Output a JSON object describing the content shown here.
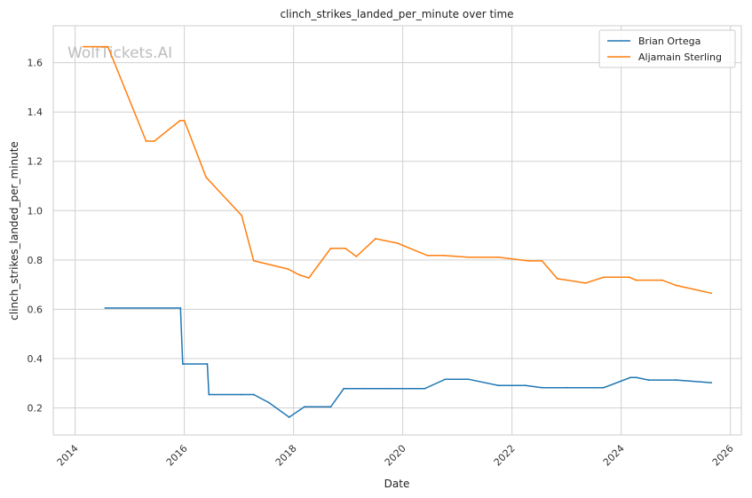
{
  "chart_data": {
    "type": "line",
    "title": "clinch_strikes_landed_per_minute over time",
    "xlabel": "Date",
    "ylabel": "clinch_strikes_landed_per_minute",
    "watermark": "WolfTickets.AI",
    "xlim": [
      2013.6,
      2026.2
    ],
    "ylim": [
      0.09,
      1.75
    ],
    "x_ticks": [
      2014,
      2016,
      2018,
      2020,
      2022,
      2024,
      2026
    ],
    "y_ticks": [
      0.2,
      0.4,
      0.6,
      0.8,
      1.0,
      1.2,
      1.4,
      1.6
    ],
    "y_tick_labels": [
      "0.2",
      "0.4",
      "0.6",
      "0.8",
      "1.0",
      "1.2",
      "1.4",
      "1.6"
    ],
    "grid": true,
    "legend_position": "top-right",
    "series": [
      {
        "name": "Brian Ortega",
        "color": "#1f77b4",
        "x": [
          2014.55,
          2015.93,
          2015.97,
          2016.42,
          2016.45,
          2017.05,
          2017.27,
          2017.55,
          2017.92,
          2018.2,
          2018.68,
          2018.92,
          2019.3,
          2019.7,
          2020.4,
          2020.78,
          2021.2,
          2021.75,
          2022.25,
          2022.55,
          2023.0,
          2023.68,
          2024.17,
          2024.28,
          2024.5,
          2025.0,
          2025.65
        ],
        "y": [
          0.605,
          0.605,
          0.378,
          0.378,
          0.254,
          0.254,
          0.254,
          0.221,
          0.162,
          0.204,
          0.204,
          0.278,
          0.278,
          0.278,
          0.278,
          0.316,
          0.316,
          0.291,
          0.291,
          0.282,
          0.282,
          0.282,
          0.323,
          0.323,
          0.313,
          0.313,
          0.302
        ]
      },
      {
        "name": "Aljamain Sterling",
        "color": "#ff7f0e",
        "x": [
          2014.15,
          2014.6,
          2015.3,
          2015.45,
          2015.92,
          2016.0,
          2016.4,
          2017.05,
          2017.27,
          2017.9,
          2018.1,
          2018.28,
          2018.68,
          2018.95,
          2019.15,
          2019.5,
          2019.9,
          2020.45,
          2020.75,
          2021.2,
          2021.75,
          2022.3,
          2022.55,
          2022.83,
          2023.35,
          2023.68,
          2024.15,
          2024.27,
          2024.75,
          2025.0,
          2025.65
        ],
        "y": [
          1.665,
          1.665,
          1.282,
          1.282,
          1.365,
          1.365,
          1.135,
          0.98,
          0.797,
          0.763,
          0.74,
          0.727,
          0.847,
          0.847,
          0.814,
          0.886,
          0.868,
          0.818,
          0.818,
          0.811,
          0.811,
          0.796,
          0.796,
          0.724,
          0.706,
          0.73,
          0.73,
          0.718,
          0.718,
          0.697,
          0.665
        ]
      }
    ]
  }
}
